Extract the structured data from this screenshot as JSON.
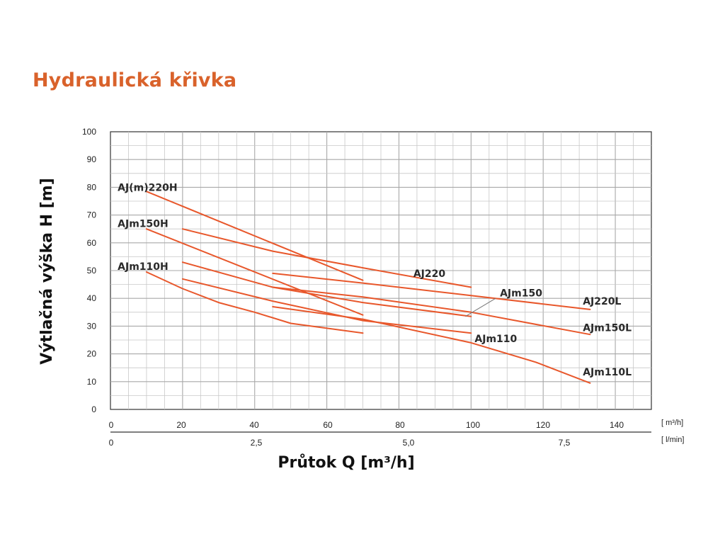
{
  "page": {
    "title": "Hydraulická křivka"
  },
  "colors": {
    "title": "#d9622b",
    "series": "#e8572b",
    "grid": "#c8c8c8",
    "axis": "#333333"
  },
  "chart_data": {
    "type": "line",
    "title": "Hydraulická křivka",
    "ylabel": "Výtlačná výška H [m]",
    "xlabel": "Průtok Q [m³/h]",
    "ylim": [
      0,
      100
    ],
    "xlim": [
      0,
      150
    ],
    "y_ticks": [
      "0",
      "10",
      "20",
      "30",
      "40",
      "50",
      "60",
      "70",
      "80",
      "90",
      "100"
    ],
    "x_ticks_top": [
      "0",
      "20",
      "40",
      "60",
      "80",
      "100",
      "120",
      "140"
    ],
    "x_unit_top": "[ m³/h]",
    "x_ticks_bottom": [
      "0",
      "2,5",
      "5,0",
      "7,5"
    ],
    "x_unit_bottom": "[ l/min]",
    "grid": true,
    "series": [
      {
        "name": "AJ(m)220H",
        "points": [
          [
            10,
            78.5
          ],
          [
            70,
            46.5
          ]
        ]
      },
      {
        "name": "AJm150H",
        "points": [
          [
            10,
            65
          ],
          [
            70,
            34
          ]
        ]
      },
      {
        "name": "AJm110H",
        "points": [
          [
            10,
            49.5
          ],
          [
            20,
            43.5
          ],
          [
            30,
            38.5
          ],
          [
            40,
            35
          ],
          [
            50,
            31
          ],
          [
            70,
            27.5
          ]
        ]
      },
      {
        "name": "AJ220",
        "points": [
          [
            20,
            65
          ],
          [
            45,
            57
          ],
          [
            70,
            51
          ],
          [
            100,
            44
          ]
        ]
      },
      {
        "name": "AJm150",
        "points": [
          [
            20,
            53
          ],
          [
            45,
            44
          ],
          [
            70,
            38.5
          ],
          [
            100,
            33.5
          ]
        ]
      },
      {
        "name": "AJm110",
        "points": [
          [
            20,
            47
          ],
          [
            45,
            39
          ],
          [
            70,
            32
          ],
          [
            100,
            27.5
          ]
        ]
      },
      {
        "name": "AJ220L",
        "points": [
          [
            45,
            49
          ],
          [
            70,
            45.5
          ],
          [
            100,
            41
          ],
          [
            133,
            36
          ]
        ]
      },
      {
        "name": "AJm150L",
        "points": [
          [
            45,
            44
          ],
          [
            70,
            40.5
          ],
          [
            100,
            35
          ],
          [
            133,
            27
          ]
        ]
      },
      {
        "name": "AJm110L",
        "points": [
          [
            45,
            37
          ],
          [
            70,
            32.5
          ],
          [
            100,
            24
          ],
          [
            118,
            17
          ],
          [
            133,
            9.5
          ]
        ]
      }
    ],
    "labels": [
      {
        "text": "AJ(m)220H",
        "x": 2,
        "y": 80
      },
      {
        "text": "AJm150H",
        "x": 2,
        "y": 67
      },
      {
        "text": "AJm110H",
        "x": 2,
        "y": 51.5
      },
      {
        "text": "AJ220",
        "x": 84,
        "y": 49
      },
      {
        "text": "AJm150",
        "x": 108,
        "y": 42
      },
      {
        "text": "AJm110",
        "x": 101,
        "y": 25.5
      },
      {
        "text": "AJ220L",
        "x": 131,
        "y": 39
      },
      {
        "text": "AJm150L",
        "x": 131,
        "y": 29.5
      },
      {
        "text": "AJm110L",
        "x": 131,
        "y": 13.5
      }
    ],
    "leader": {
      "from": [
        100,
        33.5
      ],
      "to": [
        108,
        40
      ]
    }
  }
}
